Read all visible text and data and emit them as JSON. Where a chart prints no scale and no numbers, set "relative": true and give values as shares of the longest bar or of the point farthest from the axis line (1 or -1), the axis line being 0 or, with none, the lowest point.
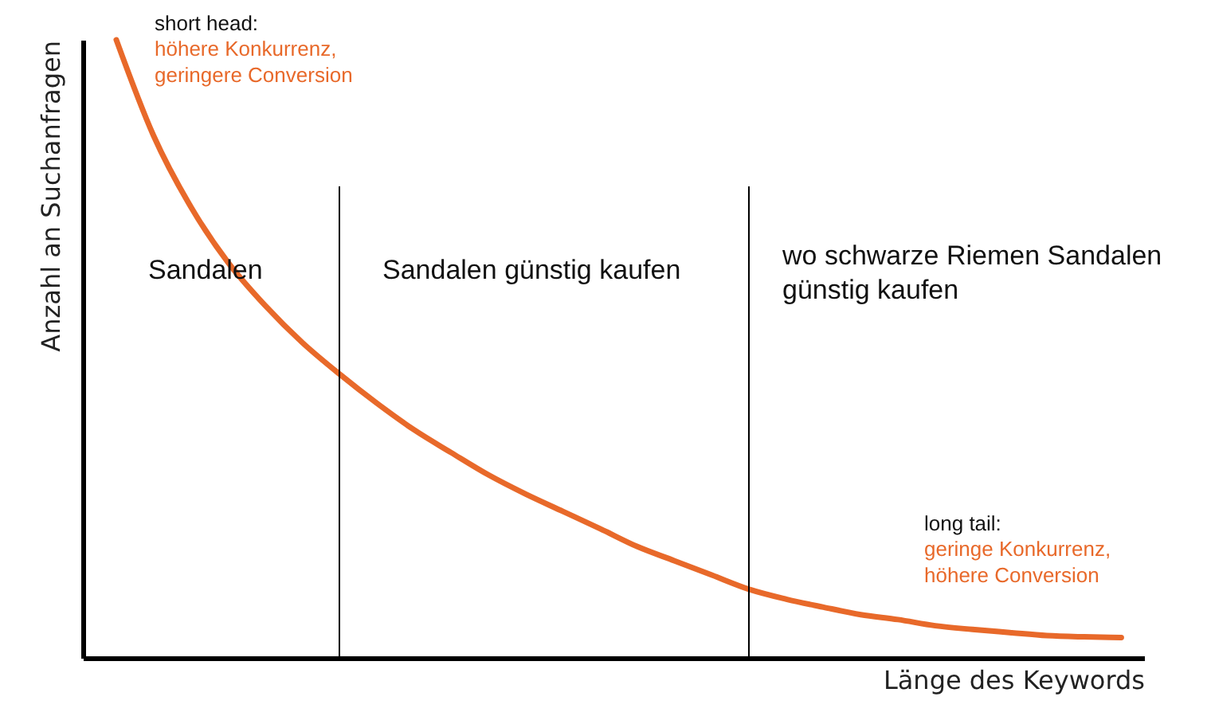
{
  "chart_data": {
    "type": "line",
    "relative": true,
    "xlabel": "Länge des Keywords",
    "ylabel": "Anzahl an Suchanfragen",
    "categories": [
      null,
      null,
      null,
      null,
      null,
      null,
      null,
      null,
      null,
      null,
      null,
      null,
      null,
      null,
      null,
      null,
      null,
      null,
      null,
      null,
      null,
      null,
      null,
      null,
      null,
      null,
      null,
      null
    ],
    "series": [
      {
        "color": "#e8692a",
        "values": [
          1.0,
          0.845,
          0.73,
          0.64,
          0.57,
          0.51,
          0.459,
          0.412,
          0.369,
          0.332,
          0.296,
          0.265,
          0.237,
          0.209,
          0.18,
          0.157,
          0.134,
          0.111,
          0.095,
          0.082,
          0.07,
          0.062,
          0.052,
          0.046,
          0.041,
          0.036,
          0.034,
          0.033
        ]
      }
    ],
    "annotations": [
      "short head:",
      "höhere Konkurrenz,\ngeringere Conversion",
      "Sandalen",
      "Sandalen günstig kaufen",
      "wo schwarze Riemen Sandalen\ngünstig kaufen",
      "long tail:",
      "geringe Konkurrenz,\nhöhere Conversion"
    ],
    "grid": false,
    "marker": "none",
    "line_style": "solid"
  }
}
